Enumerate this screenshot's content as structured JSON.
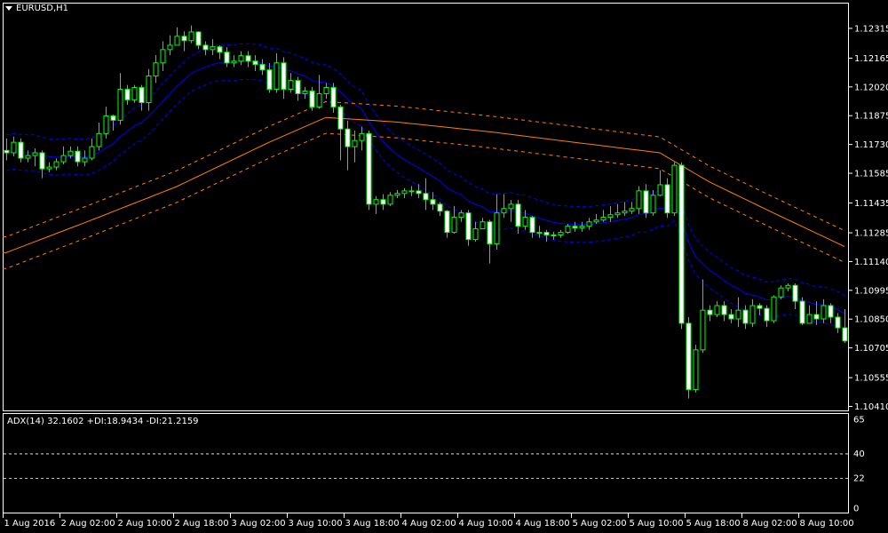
{
  "header": {
    "symbol_timeframe": "EURUSD,H1"
  },
  "indicator_panel": {
    "label": "ADX(14) 32.1602 +DI:18.9434 -DI:21.2159",
    "levels": [
      40,
      22
    ],
    "axis_labels": [
      "65",
      "40",
      "22",
      "0"
    ],
    "ylim": [
      0,
      65
    ]
  },
  "colors": {
    "background": "#000000",
    "frame": "#ffffff",
    "candle_outline": "#00ff00",
    "bear_body": "#ffffff",
    "bull_body": "#000000",
    "band_blue": "#0000ff",
    "ma_orange": "#ff8000"
  },
  "chart_data": {
    "type": "candlestick",
    "title": "EURUSD,H1",
    "x_tick_labels": [
      "1 Aug 2016",
      "2 Aug 02:00",
      "2 Aug 10:00",
      "2 Aug 18:00",
      "3 Aug 02:00",
      "3 Aug 10:00",
      "3 Aug 18:00",
      "4 Aug 02:00",
      "4 Aug 10:00",
      "4 Aug 18:00",
      "5 Aug 02:00",
      "5 Aug 10:00",
      "5 Aug 18:00",
      "8 Aug 02:00",
      "8 Aug 10:00"
    ],
    "y_tick_labels": [
      "1.12315",
      "1.12165",
      "1.12020",
      "1.11875",
      "1.11730",
      "1.11585",
      "1.11435",
      "1.11285",
      "1.11140",
      "1.10995",
      "1.10850",
      "1.10705",
      "1.10555",
      "1.10410"
    ],
    "ylim": [
      1.1039,
      1.1244
    ],
    "grid": false,
    "open_first": 1.117,
    "close": [
      1.11688,
      1.11741,
      1.11661,
      1.11674,
      1.11688,
      1.11607,
      1.11616,
      1.11643,
      1.11674,
      1.11696,
      1.11643,
      1.11661,
      1.11719,
      1.11785,
      1.11874,
      1.11852,
      1.12008,
      1.11955,
      1.12017,
      1.11941,
      1.12075,
      1.12141,
      1.12208,
      1.1223,
      1.12275,
      1.12253,
      1.12297,
      1.1223,
      1.12208,
      1.12222,
      1.12195,
      1.12141,
      1.1215,
      1.12177,
      1.1215,
      1.12133,
      1.12106,
      1.12008,
      1.12141,
      1.12008,
      1.12052,
      1.11986,
      1.11999,
      1.11919,
      1.11986,
      1.12017,
      1.11919,
      1.11808,
      1.11719,
      1.1175,
      1.11785,
      1.11429,
      1.11452,
      1.11429,
      1.11474,
      1.11483,
      1.11496,
      1.11496,
      1.11483,
      1.11452,
      1.11429,
      1.11394,
      1.11287,
      1.11363,
      1.11385,
      1.11251,
      1.11305,
      1.1134,
      1.11229,
      1.11385,
      1.11407,
      1.11429,
      1.11318,
      1.11363,
      1.11287,
      1.11287,
      1.11274,
      1.11274,
      1.11287,
      1.11318,
      1.11309,
      1.11318,
      1.1134,
      1.11349,
      1.11363,
      1.11376,
      1.11385,
      1.11394,
      1.11407,
      1.11496,
      1.11385,
      1.11474,
      1.11527,
      1.11385,
      1.11625,
      1.10829,
      1.10495,
      1.10695,
      1.10895,
      1.10873,
      1.10918,
      1.10873,
      1.10851,
      1.10895,
      1.10829,
      1.10918,
      1.10904,
      1.10842,
      1.10962,
      1.11007,
      1.1102,
      1.1094,
      1.10829,
      1.10873,
      1.10851,
      1.10918,
      1.1086,
      1.10806,
      1.1074
    ],
    "high": [
      1.1176,
      1.1177,
      1.1176,
      1.117,
      1.1171,
      1.117,
      1.1164,
      1.1166,
      1.1172,
      1.1172,
      1.1172,
      1.117,
      1.1176,
      1.1184,
      1.1192,
      1.1188,
      1.1209,
      1.1203,
      1.1203,
      1.1203,
      1.1211,
      1.1218,
      1.1225,
      1.1228,
      1.1232,
      1.123,
      1.1233,
      1.123,
      1.1225,
      1.1226,
      1.1223,
      1.1222,
      1.1218,
      1.122,
      1.122,
      1.1218,
      1.1216,
      1.1214,
      1.1219,
      1.1217,
      1.1209,
      1.1207,
      1.1202,
      1.1202,
      1.1208,
      1.1204,
      1.1204,
      1.1193,
      1.1185,
      1.118,
      1.1182,
      1.118,
      1.1147,
      1.1148,
      1.1149,
      1.115,
      1.1151,
      1.1152,
      1.1153,
      1.1156,
      1.1149,
      1.1144,
      1.114,
      1.1142,
      1.114,
      1.114,
      1.1134,
      1.1136,
      1.1135,
      1.1148,
      1.1148,
      1.1145,
      1.1145,
      1.114,
      1.1137,
      1.1132,
      1.113,
      1.1129,
      1.113,
      1.1133,
      1.1134,
      1.1134,
      1.1136,
      1.1138,
      1.114,
      1.1142,
      1.1143,
      1.1144,
      1.1144,
      1.1152,
      1.1153,
      1.115,
      1.116,
      1.1156,
      1.1164,
      1.1164,
      1.1086,
      1.1072,
      1.1105,
      1.1092,
      1.1094,
      1.1094,
      1.109,
      1.1096,
      1.1092,
      1.1095,
      1.1093,
      1.1092,
      1.1097,
      1.1102,
      1.1103,
      1.1103,
      1.1096,
      1.1092,
      1.1094,
      1.1095,
      1.1093,
      1.1088,
      1.109
    ],
    "low": [
      1.1165,
      1.1167,
      1.1164,
      1.1164,
      1.1162,
      1.1156,
      1.1159,
      1.116,
      1.1163,
      1.1166,
      1.1162,
      1.1162,
      1.1165,
      1.117,
      1.1176,
      1.118,
      1.1183,
      1.1193,
      1.1194,
      1.119,
      1.119,
      1.1204,
      1.121,
      1.1218,
      1.1223,
      1.122,
      1.1224,
      1.1221,
      1.1218,
      1.1218,
      1.1216,
      1.1212,
      1.1212,
      1.1213,
      1.1212,
      1.121,
      1.1208,
      1.1199,
      1.1199,
      1.1196,
      1.1199,
      1.1195,
      1.1196,
      1.119,
      1.1191,
      1.1196,
      1.1189,
      1.1165,
      1.116,
      1.1164,
      1.117,
      1.114,
      1.1138,
      1.114,
      1.1142,
      1.1146,
      1.1146,
      1.1147,
      1.1146,
      1.114,
      1.114,
      1.1137,
      1.1126,
      1.1128,
      1.1134,
      1.1122,
      1.1124,
      1.1132,
      1.1113,
      1.112,
      1.1136,
      1.1134,
      1.1128,
      1.113,
      1.1126,
      1.1126,
      1.1124,
      1.1125,
      1.1126,
      1.1128,
      1.1129,
      1.1129,
      1.113,
      1.1133,
      1.1134,
      1.1134,
      1.1136,
      1.1137,
      1.1138,
      1.1138,
      1.1136,
      1.1137,
      1.1147,
      1.1136,
      1.1137,
      1.108,
      1.1045,
      1.1048,
      1.1068,
      1.1084,
      1.1086,
      1.1084,
      1.1083,
      1.1081,
      1.108,
      1.1081,
      1.1087,
      1.1081,
      1.1083,
      1.1095,
      1.1099,
      1.109,
      1.1082,
      1.1083,
      1.1082,
      1.1083,
      1.1083,
      1.1078,
      1.1073
    ],
    "orange_ma": {
      "bars": [
        0,
        12,
        24,
        37,
        45,
        55,
        68,
        80,
        92,
        99,
        108,
        118
      ],
      "values": [
        1.11185,
        1.11349,
        1.11518,
        1.11741,
        1.11866,
        1.11843,
        1.11794,
        1.11741,
        1.11688,
        1.11541,
        1.11385,
        1.11216
      ],
      "envelope": 0.0008
    }
  }
}
